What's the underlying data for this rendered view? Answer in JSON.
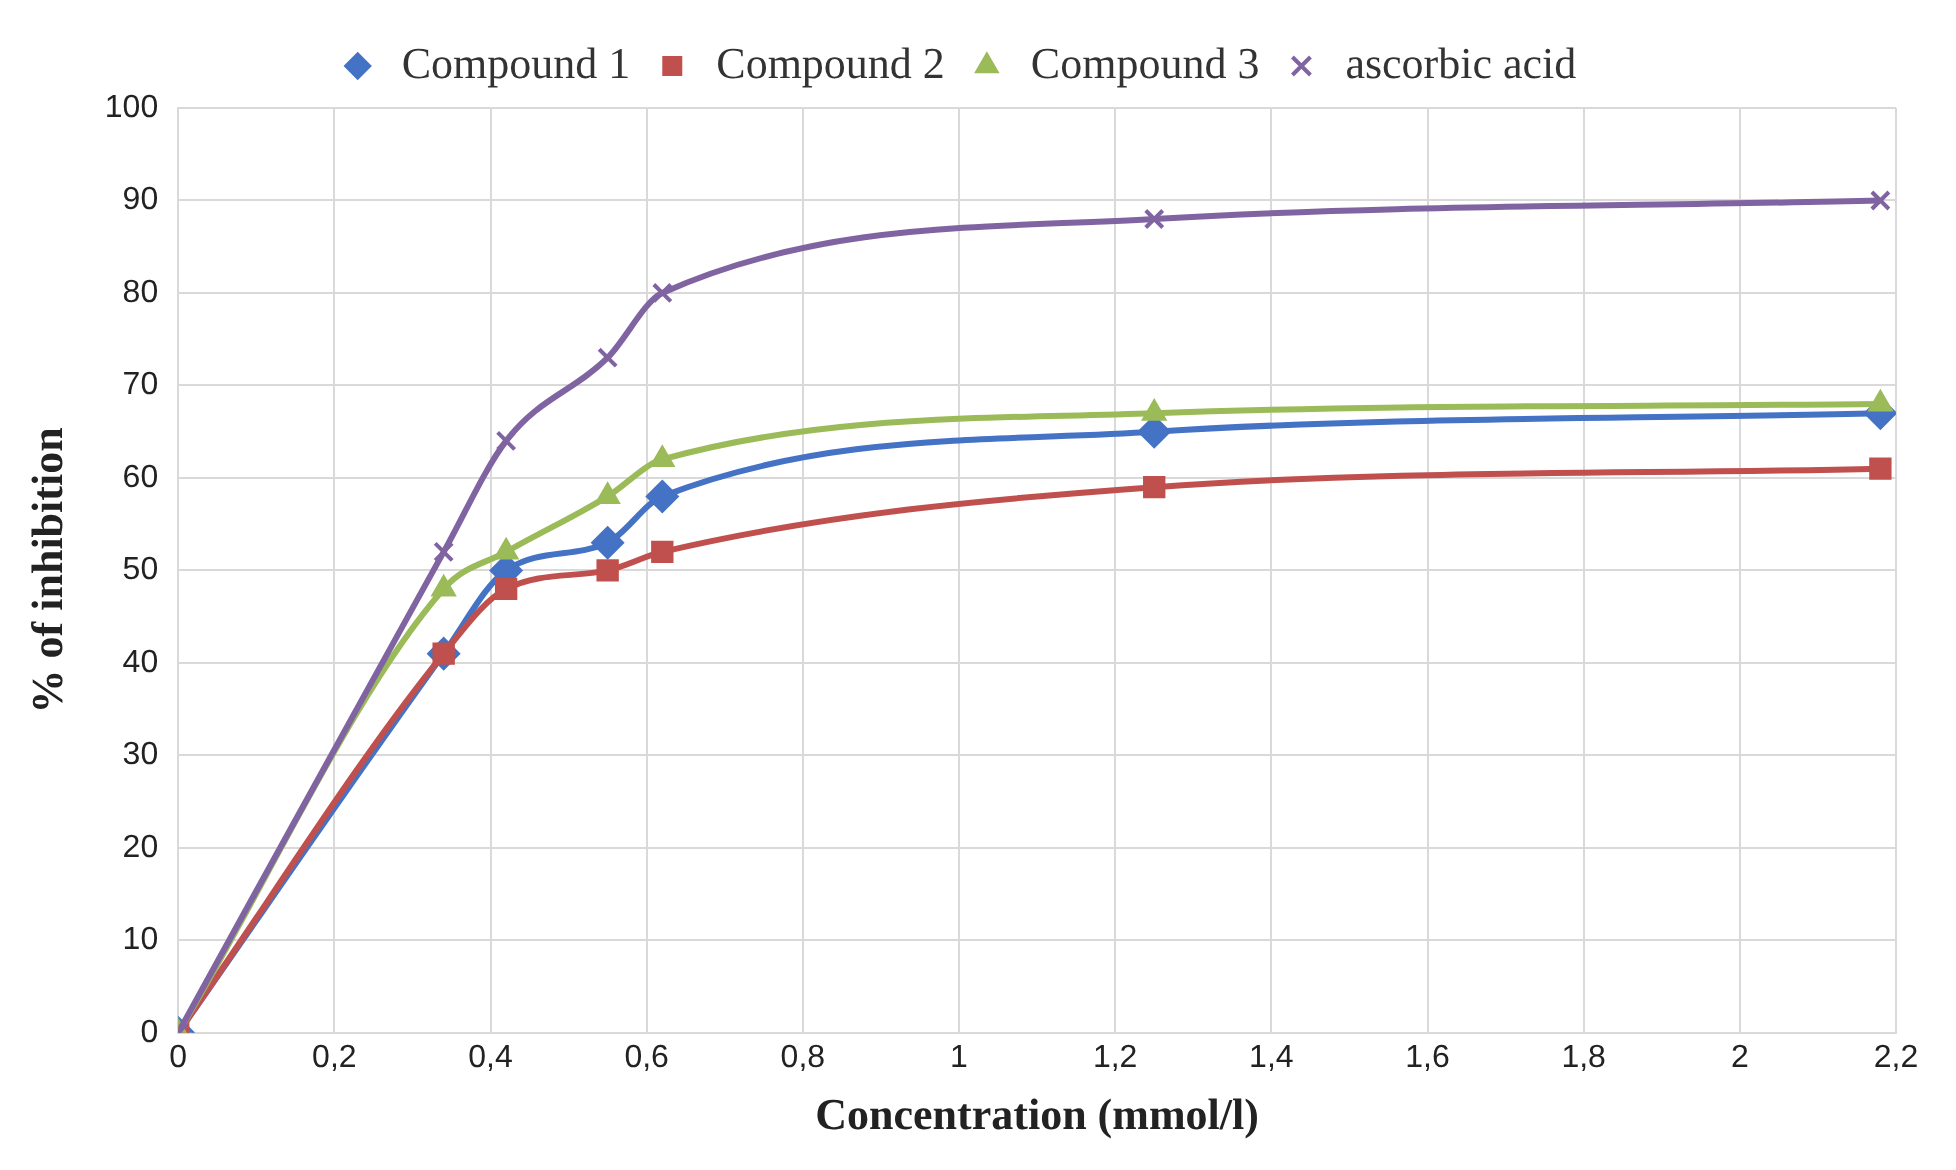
{
  "chart_data": {
    "type": "line",
    "xlabel": "Concentration (mmol/l)",
    "ylabel": "% of inhibition",
    "x": [
      0,
      0.34,
      0.42,
      0.55,
      0.62,
      1.25,
      2.18
    ],
    "series": [
      {
        "name": "Compound 1",
        "color": "#4472c4",
        "marker": "diamond",
        "values": [
          0,
          41,
          50,
          53,
          58,
          65,
          67
        ]
      },
      {
        "name": "Compound 2",
        "color": "#c0504d",
        "marker": "square",
        "values": [
          0,
          41,
          48,
          50,
          52,
          59,
          61
        ]
      },
      {
        "name": "Compound 3",
        "color": "#9bbb59",
        "marker": "triangle",
        "values": [
          0,
          48,
          52,
          58,
          62,
          67,
          68
        ]
      },
      {
        "name": "ascorbic acid",
        "color": "#8064a2",
        "marker": "cross",
        "values": [
          0,
          52,
          64,
          73,
          80,
          88,
          90
        ]
      }
    ],
    "xlim": [
      0,
      2.2
    ],
    "xticks": [
      0,
      {
        "value": 0.2,
        "label": "0,2"
      },
      {
        "value": 0.4,
        "label": "0,4"
      },
      {
        "value": 0.6,
        "label": "0,6"
      },
      {
        "value": 0.8,
        "label": "0,8"
      },
      1,
      {
        "value": 1.2,
        "label": "1,2"
      },
      {
        "value": 1.4,
        "label": "1,4"
      },
      {
        "value": 1.6,
        "label": "1,6"
      },
      {
        "value": 1.8,
        "label": "1,8"
      },
      2,
      {
        "value": 2.2,
        "label": "2,2"
      }
    ],
    "ylim": [
      0,
      100
    ],
    "yticks": [
      0,
      10,
      20,
      30,
      40,
      50,
      60,
      70,
      80,
      90,
      100
    ],
    "grid": true,
    "legend": "top",
    "line_style": "solid"
  }
}
